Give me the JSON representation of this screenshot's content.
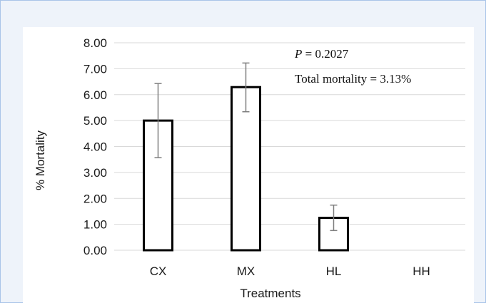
{
  "chart_data": {
    "type": "bar",
    "categories": [
      "CX",
      "MX",
      "HL",
      "HH"
    ],
    "values": [
      5.0,
      6.29,
      1.25,
      0.0
    ],
    "error_low": [
      3.57,
      5.34,
      0.76,
      null
    ],
    "error_high": [
      6.43,
      7.22,
      1.74,
      null
    ],
    "ylim": [
      0,
      8
    ],
    "y_ticks": [
      "0.00",
      "1.00",
      "2.00",
      "3.00",
      "4.00",
      "5.00",
      "6.00",
      "7.00",
      "8.00"
    ],
    "xlabel": "Treatments",
    "ylabel": "% Mortality",
    "grid": "horizontal",
    "annotations": {
      "p_label": "P",
      "p_value": " = 0.2027",
      "total": "Total mortality = 3.13%"
    },
    "colors": {
      "bar_fill": "#ffffff",
      "bar_edge": "#000000",
      "error_bar": "#7f7f7f",
      "grid": "#d9d9d9"
    }
  }
}
